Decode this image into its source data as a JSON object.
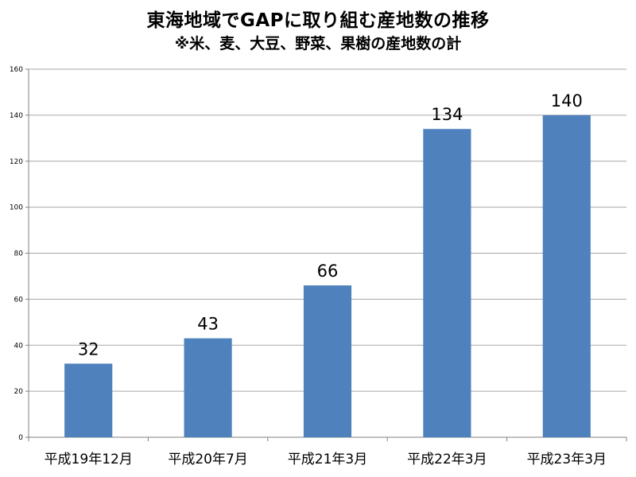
{
  "chart_data": {
    "type": "bar",
    "title": "東海地域でGAPに取り組む産地数の推移",
    "subtitle": "※米、麦、大豆、野菜、果樹の産地数の計",
    "categories": [
      "平成19年12月",
      "平成20年7月",
      "平成21年3月",
      "平成22年3月",
      "平成23年3月"
    ],
    "values": [
      32,
      43,
      66,
      134,
      140
    ],
    "ylim": [
      0,
      160
    ],
    "yticks": [
      0,
      20,
      40,
      60,
      80,
      100,
      120,
      140,
      160
    ],
    "xlabel": "",
    "ylabel": "",
    "grid": true,
    "legend": "none",
    "bar_color": "#4F81BD",
    "grid_color": "#A6A6A6"
  }
}
